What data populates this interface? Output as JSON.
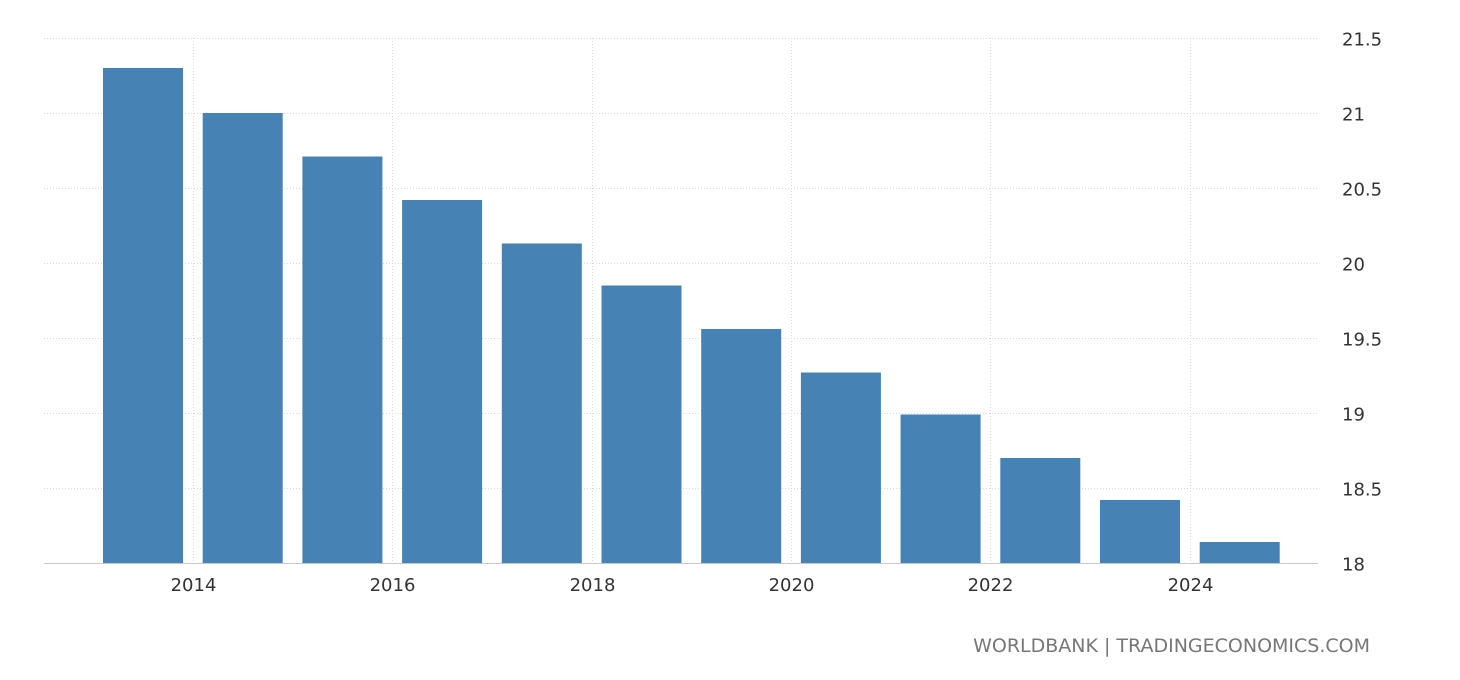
{
  "chart_data": {
    "type": "bar",
    "categories": [
      "2013",
      "2014",
      "2015",
      "2016",
      "2017",
      "2018",
      "2019",
      "2020",
      "2021",
      "2022",
      "2023",
      "2024"
    ],
    "series": [
      {
        "values": [
          21.3,
          21.0,
          20.71,
          20.42,
          20.13,
          19.85,
          19.56,
          19.27,
          18.99,
          18.7,
          18.42,
          18.14
        ],
        "color": "#4682b4"
      }
    ],
    "x_tick_labels": [
      "2014",
      "2016",
      "2018",
      "2020",
      "2022",
      "2024"
    ],
    "y_ticks": [
      18,
      18.5,
      19,
      19.5,
      20,
      20.5,
      21,
      21.5
    ],
    "y_tick_labels": [
      "18",
      "18.5",
      "19",
      "19.5",
      "20",
      "20.5",
      "21",
      "21.5"
    ],
    "ylim": [
      18,
      21.5
    ],
    "y_axis_side": "right",
    "grid": true,
    "legend": "none",
    "title": "",
    "xlabel": "",
    "ylabel": ""
  },
  "source": {
    "text": "WORLDBANK | TRADINGECONOMICS.COM"
  }
}
